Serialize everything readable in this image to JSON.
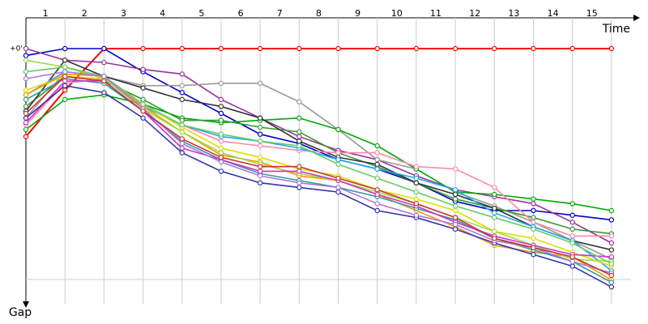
{
  "chart_data": {
    "type": "line",
    "x_label": "Time",
    "y_label": "Gap",
    "x": [
      0,
      1,
      2,
      3,
      4,
      5,
      6,
      7,
      8,
      9,
      10,
      11,
      12,
      13,
      14,
      15
    ],
    "xlim": [
      0,
      15.5
    ],
    "xticks": [
      {
        "value": 0.5,
        "label": "1"
      },
      {
        "value": 1.5,
        "label": "2"
      },
      {
        "value": 2.5,
        "label": "3"
      },
      {
        "value": 3.5,
        "label": "4"
      },
      {
        "value": 4.5,
        "label": "5"
      },
      {
        "value": 5.5,
        "label": "6"
      },
      {
        "value": 6.5,
        "label": "7"
      },
      {
        "value": 7.5,
        "label": "8"
      },
      {
        "value": 8.5,
        "label": "9"
      },
      {
        "value": 9.5,
        "label": "10"
      },
      {
        "value": 10.5,
        "label": "11"
      },
      {
        "value": 11.5,
        "label": "12"
      },
      {
        "value": 12.5,
        "label": "13"
      },
      {
        "value": 13.5,
        "label": "14"
      },
      {
        "value": 14.5,
        "label": "15"
      }
    ],
    "ylim": [
      0,
      105
    ],
    "y_inverted": true,
    "yticks": [
      {
        "value": 0,
        "label": "+0'"
      }
    ],
    "grid": true,
    "series": [
      {
        "color": "#ff0000",
        "values": [
          38,
          18,
          0,
          0,
          0,
          0,
          0,
          0,
          0,
          0,
          0,
          0,
          0,
          0,
          0,
          0
        ]
      },
      {
        "color": "#0000cc",
        "values": [
          3,
          0,
          0,
          10,
          19,
          28,
          37,
          41,
          48,
          52,
          58,
          66,
          70,
          70,
          72,
          74
        ]
      },
      {
        "color": "#993399",
        "values": [
          0,
          5,
          6,
          9,
          11,
          22,
          30,
          38,
          44,
          48,
          55,
          61,
          64,
          67,
          75,
          84
        ]
      },
      {
        "color": "#999999",
        "values": [
          30,
          10,
          12,
          16,
          16,
          15,
          15,
          23,
          35,
          48,
          52,
          62,
          68,
          75,
          83,
          91
        ]
      },
      {
        "color": "#00aa00",
        "values": [
          35,
          22,
          20,
          24,
          30,
          32,
          31,
          30,
          35,
          42,
          52,
          62,
          63,
          65,
          67,
          70
        ]
      },
      {
        "color": "#339933",
        "values": [
          25,
          12,
          14,
          22,
          31,
          31,
          34,
          36,
          45,
          51,
          58,
          65,
          69,
          73,
          78,
          80
        ]
      },
      {
        "color": "#333333",
        "values": [
          27,
          5,
          12,
          17,
          22,
          25,
          30,
          40,
          47,
          50,
          58,
          63,
          69,
          77,
          83,
          87
        ]
      },
      {
        "color": "#ff88aa",
        "values": [
          33,
          15,
          13,
          24,
          33,
          40,
          42,
          44,
          45,
          45,
          51,
          52,
          60,
          75,
          81,
          81
        ]
      },
      {
        "color": "#22aaee",
        "values": [
          20,
          10,
          12,
          25,
          33,
          38,
          40,
          43,
          48,
          52,
          56,
          61,
          71,
          77,
          83,
          96
        ]
      },
      {
        "color": "#dddd00",
        "values": [
          18,
          12,
          13,
          24,
          34,
          43,
          47,
          52,
          55,
          61,
          65,
          70,
          79,
          82,
          88,
          94
        ]
      },
      {
        "color": "#ff9900",
        "values": [
          20,
          11,
          12,
          25,
          36,
          46,
          49,
          55,
          57,
          63,
          70,
          77,
          85,
          88,
          90,
          100
        ]
      },
      {
        "color": "#99dd44",
        "values": [
          5,
          8,
          13,
          26,
          36,
          45,
          50,
          54,
          57,
          62,
          67,
          73,
          79,
          85,
          91,
          92
        ]
      },
      {
        "color": "#339999",
        "values": [
          22,
          13,
          15,
          27,
          40,
          48,
          54,
          57,
          60,
          64,
          69,
          74,
          82,
          87,
          92,
          101
        ]
      },
      {
        "color": "#cc33cc",
        "values": [
          32,
          14,
          14,
          27,
          43,
          48,
          53,
          53,
          57,
          63,
          68,
          75,
          81,
          85,
          89,
          90
        ]
      },
      {
        "color": "#3333aa",
        "values": [
          30,
          16,
          19,
          30,
          45,
          53,
          58,
          60,
          62,
          70,
          73,
          78,
          84,
          89,
          94,
          103
        ]
      },
      {
        "color": "#66cc66",
        "values": [
          10,
          8,
          12,
          24,
          33,
          37,
          40,
          42,
          50,
          56,
          62,
          68,
          73,
          78,
          84,
          93
        ]
      },
      {
        "color": "#aa77dd",
        "values": [
          13,
          10,
          12,
          26,
          41,
          49,
          55,
          58,
          60,
          67,
          72,
          76,
          83,
          86,
          92,
          97
        ]
      },
      {
        "color": "#cc3333",
        "values": [
          28,
          12,
          14,
          27,
          39,
          47,
          51,
          51,
          56,
          61,
          67,
          73,
          82,
          86,
          90,
          98
        ]
      }
    ]
  }
}
